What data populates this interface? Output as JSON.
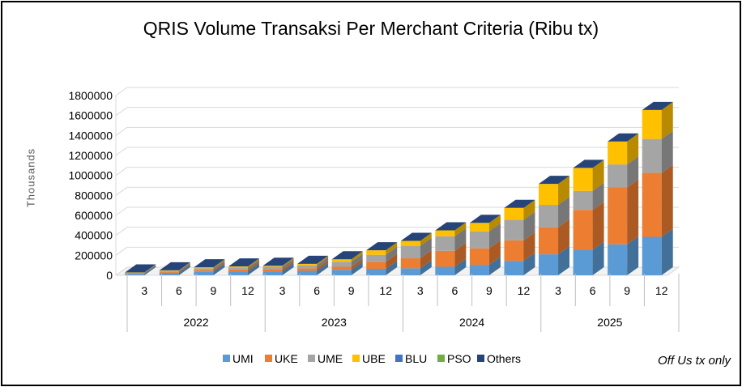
{
  "chart_data": {
    "type": "bar",
    "title": "QRIS Volume Transaksi Per Merchant Criteria (Ribu tx)",
    "ylabel": "Thousands",
    "note": "Off Us tx only",
    "stacked": true,
    "three_d": true,
    "ylim": [
      0,
      1800000
    ],
    "yticks": [
      0,
      200000,
      400000,
      600000,
      800000,
      1000000,
      1200000,
      1400000,
      1600000,
      1800000
    ],
    "years": [
      "2022",
      "2023",
      "2024",
      "2025"
    ],
    "categories": [
      "3",
      "6",
      "9",
      "12",
      "3",
      "6",
      "9",
      "12",
      "3",
      "6",
      "9",
      "12",
      "3",
      "6",
      "9",
      "12"
    ],
    "legend_position": "bottom",
    "series": [
      {
        "name": "UMI",
        "color": "#5B9BD5",
        "values": [
          15000,
          25000,
          35000,
          40000,
          40000,
          45000,
          55000,
          65000,
          70000,
          85000,
          105000,
          145000,
          210000,
          255000,
          310000,
          385000
        ]
      },
      {
        "name": "UKE",
        "color": "#ED7D31",
        "values": [
          5000,
          10000,
          15000,
          18000,
          20000,
          25000,
          30000,
          70000,
          100000,
          160000,
          165000,
          205000,
          270000,
          400000,
          570000,
          640000
        ]
      },
      {
        "name": "UME",
        "color": "#A5A5A5",
        "values": [
          5000,
          10000,
          20000,
          20000,
          25000,
          30000,
          50000,
          70000,
          125000,
          145000,
          170000,
          205000,
          225000,
          190000,
          230000,
          340000
        ]
      },
      {
        "name": "UBE",
        "color": "#FFC000",
        "values": [
          3000,
          5000,
          10000,
          10000,
          10000,
          15000,
          25000,
          45000,
          50000,
          60000,
          85000,
          120000,
          210000,
          230000,
          230000,
          290000
        ]
      },
      {
        "name": "BLU",
        "color": "#4472C4",
        "values": [
          0,
          0,
          0,
          0,
          0,
          0,
          0,
          0,
          0,
          0,
          0,
          0,
          0,
          0,
          0,
          0
        ]
      },
      {
        "name": "PSO",
        "color": "#70AD47",
        "values": [
          0,
          0,
          0,
          0,
          0,
          0,
          0,
          0,
          0,
          0,
          0,
          0,
          0,
          0,
          0,
          0
        ]
      },
      {
        "name": "Others",
        "color": "#264478",
        "values": [
          0,
          0,
          0,
          0,
          0,
          0,
          0,
          0,
          0,
          0,
          0,
          0,
          0,
          0,
          0,
          0
        ]
      }
    ]
  }
}
